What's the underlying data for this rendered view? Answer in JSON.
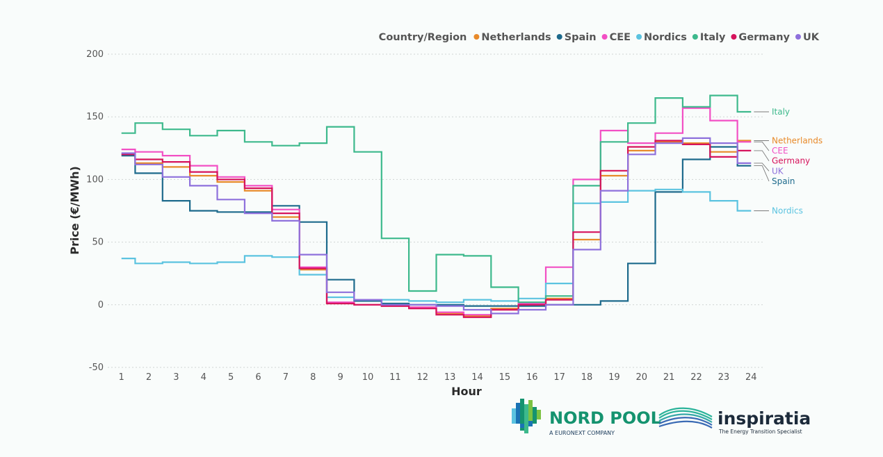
{
  "chart_data": {
    "type": "line",
    "step": true,
    "xlabel": "Hour",
    "ylabel": "Price (€/MWh)",
    "x": [
      1,
      2,
      3,
      4,
      5,
      6,
      7,
      8,
      9,
      10,
      11,
      12,
      13,
      14,
      15,
      16,
      17,
      18,
      19,
      20,
      21,
      22,
      23,
      24
    ],
    "xlim": [
      1,
      24
    ],
    "ylim": [
      -50,
      200
    ],
    "yticks": [
      -50,
      0,
      50,
      100,
      150,
      200
    ],
    "grid": "horizontal dotted",
    "legend": {
      "title": "Country/Region",
      "placement": "top-right"
    },
    "series": [
      {
        "name": "Netherlands",
        "color": "#e88a2a",
        "values": [
          120,
          113,
          110,
          103,
          98,
          91,
          70,
          28,
          1,
          0,
          -1,
          -2,
          -7,
          -9,
          -3,
          1,
          5,
          52,
          103,
          123,
          130,
          129,
          122,
          131
        ]
      },
      {
        "name": "Spain",
        "color": "#1d6a8c",
        "values": [
          119,
          105,
          83,
          75,
          74,
          74,
          79,
          66,
          20,
          3,
          1,
          0,
          0,
          -1,
          -1,
          -1,
          0,
          0,
          3,
          33,
          90,
          116,
          126,
          111
        ]
      },
      {
        "name": "CEE",
        "color": "#f24fc4",
        "values": [
          124,
          122,
          119,
          111,
          102,
          95,
          76,
          30,
          2,
          0,
          -1,
          -2,
          -6,
          -8,
          -4,
          1,
          30,
          100,
          139,
          129,
          137,
          157,
          147,
          130
        ]
      },
      {
        "name": "Nordics",
        "color": "#5bc3e0",
        "values": [
          37,
          33,
          34,
          33,
          34,
          39,
          38,
          24,
          6,
          4,
          4,
          3,
          2,
          4,
          3,
          5,
          17,
          81,
          82,
          91,
          92,
          90,
          83,
          75
        ]
      },
      {
        "name": "Italy",
        "color": "#3db98c",
        "values": [
          137,
          145,
          140,
          135,
          139,
          130,
          127,
          129,
          142,
          122,
          53,
          11,
          40,
          39,
          14,
          2,
          7,
          95,
          130,
          145,
          165,
          158,
          167,
          154
        ]
      },
      {
        "name": "Germany",
        "color": "#d6135c",
        "values": [
          120,
          116,
          114,
          106,
          100,
          93,
          73,
          29,
          1,
          0,
          -1,
          -3,
          -8,
          -10,
          -4,
          0,
          4,
          58,
          107,
          126,
          131,
          128,
          118,
          123
        ]
      },
      {
        "name": "UK",
        "color": "#8e70dc",
        "values": [
          121,
          112,
          102,
          95,
          84,
          73,
          67,
          40,
          10,
          4,
          0,
          0,
          -1,
          -4,
          -7,
          -4,
          0,
          44,
          91,
          120,
          129,
          133,
          129,
          113
        ]
      }
    ],
    "end_labels": [
      {
        "series": "Italy",
        "text": "Italy"
      },
      {
        "series": "Netherlands",
        "text": "Netherlands"
      },
      {
        "series": "CEE",
        "text": "CEE"
      },
      {
        "series": "Germany",
        "text": "Germany"
      },
      {
        "series": "UK",
        "text": "UK"
      },
      {
        "series": "Spain",
        "text": "Spain"
      },
      {
        "series": "Nordics",
        "text": "Nordics"
      }
    ]
  },
  "logos": {
    "nordpool": {
      "name": "NORD POOL",
      "subtitle": "A EURONEXT COMPANY",
      "colors": [
        "#1a73b5",
        "#15936f",
        "#7cc242",
        "#3db98c"
      ]
    },
    "inspiratia": {
      "name": "inspiratia",
      "subtitle": "The Energy Transition Specialist",
      "colors": [
        "#2bb39a",
        "#3a6ab4",
        "#1c2a3a"
      ]
    }
  }
}
